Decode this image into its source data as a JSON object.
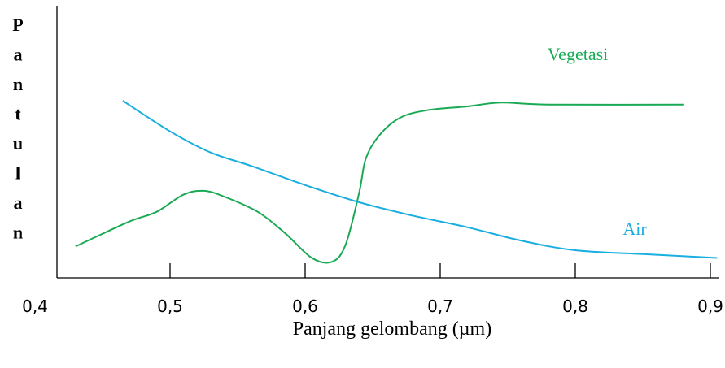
{
  "chart_data": {
    "type": "line",
    "title": "",
    "xlabel": "Panjang gelombang (µm)",
    "ylabel": "Pantulan",
    "xlim": [
      0.4,
      0.91
    ],
    "ylim": [
      0,
      1
    ],
    "x_ticks": [
      "0,4",
      "0,5",
      "0,6",
      "0,7",
      "0,8",
      "0,9"
    ],
    "x_tick_values": [
      0.4,
      0.5,
      0.6,
      0.7,
      0.8,
      0.9
    ],
    "grid": false,
    "series": [
      {
        "name": "Vegetasi",
        "color": "#1aaa55",
        "x": [
          0.43,
          0.47,
          0.49,
          0.51,
          0.525,
          0.54,
          0.565,
          0.585,
          0.605,
          0.62,
          0.63,
          0.64,
          0.645,
          0.655,
          0.67,
          0.69,
          0.72,
          0.745,
          0.78,
          0.88
        ],
        "y": [
          0.13,
          0.26,
          0.31,
          0.4,
          0.42,
          0.39,
          0.31,
          0.2,
          0.07,
          0.05,
          0.14,
          0.41,
          0.59,
          0.71,
          0.8,
          0.84,
          0.86,
          0.88,
          0.87,
          0.87
        ]
      },
      {
        "name": "Air",
        "color": "#1aaee0",
        "x": [
          0.465,
          0.5,
          0.53,
          0.56,
          0.6,
          0.64,
          0.68,
          0.72,
          0.76,
          0.8,
          0.85,
          0.905
        ],
        "y": [
          0.89,
          0.73,
          0.62,
          0.55,
          0.45,
          0.36,
          0.29,
          0.23,
          0.16,
          0.11,
          0.09,
          0.07
        ]
      }
    ]
  }
}
